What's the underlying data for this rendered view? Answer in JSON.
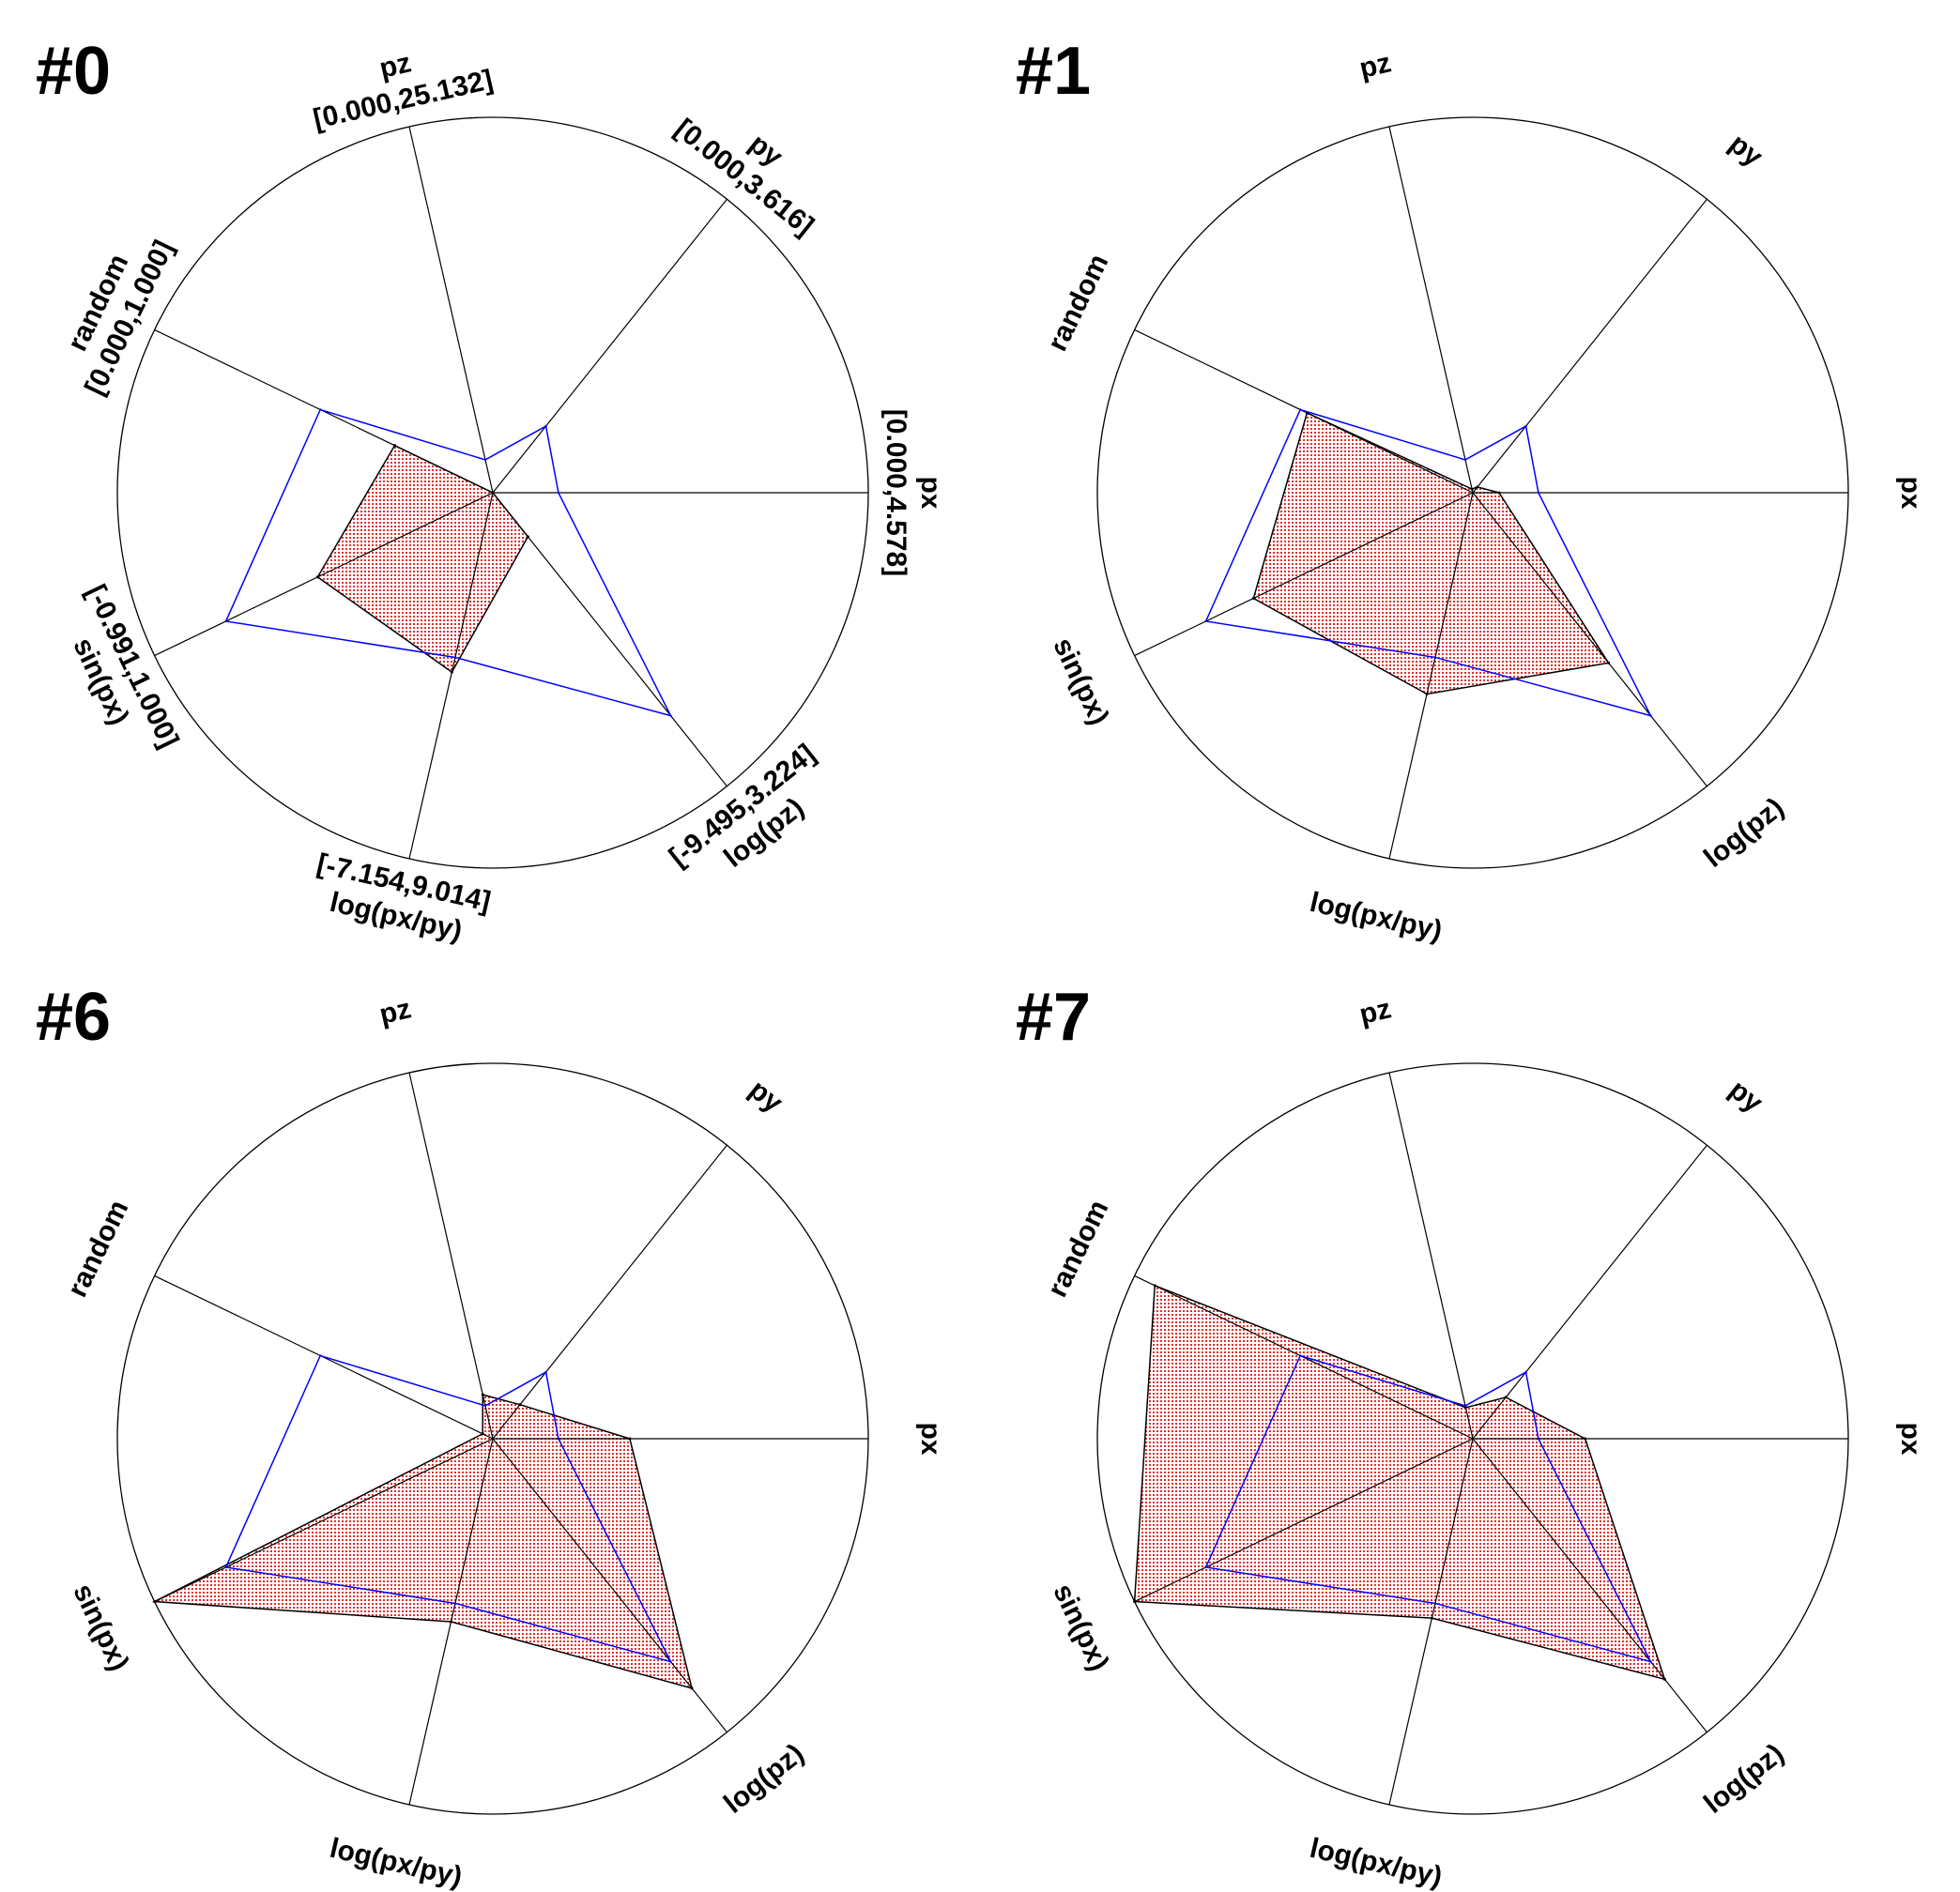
{
  "chart_data": [
    {
      "type": "radar",
      "title": "#0",
      "show_ranges": true,
      "axes": [
        {
          "name": "px",
          "range_label": "[0.000,4.578]",
          "range": [
            0.0,
            4.578
          ]
        },
        {
          "name": "py",
          "range_label": "[0.000,3.616]",
          "range": [
            0.0,
            3.616
          ]
        },
        {
          "name": "pz",
          "range_label": "[0.000,25.132]",
          "range": [
            0.0,
            25.132
          ]
        },
        {
          "name": "random",
          "range_label": "[0.000,1.000]",
          "range": [
            0.0,
            1.0
          ]
        },
        {
          "name": "sin(px)",
          "range_label": "[-0.991,1.000]",
          "range": [
            -0.991,
            1.0
          ]
        },
        {
          "name": "log(px/py)",
          "range_label": "[-7.154,9.014]",
          "range": [
            -7.154,
            9.014
          ]
        },
        {
          "name": "log(pz)",
          "range_label": "[-9.495,3.224]",
          "range": [
            -9.495,
            3.224
          ]
        }
      ],
      "reference_values": [
        0.8,
        0.82,
        2.26,
        0.51,
        0.58,
        0.12,
        0.17
      ],
      "entry_values": [
        0.0,
        0.0,
        0.0,
        0.29,
        0.04,
        0.77,
        -7.59
      ]
    },
    {
      "type": "radar",
      "title": "#1",
      "show_ranges": false,
      "axes": [
        {
          "name": "px",
          "range": [
            0.0,
            4.578
          ]
        },
        {
          "name": "py",
          "range": [
            0.0,
            3.616
          ]
        },
        {
          "name": "pz",
          "range": [
            0.0,
            25.132
          ]
        },
        {
          "name": "random",
          "range": [
            0.0,
            1.0
          ]
        },
        {
          "name": "sin(px)",
          "range": [
            -0.991,
            1.0
          ]
        },
        {
          "name": "log(px/py)",
          "range": [
            -7.154,
            9.014
          ]
        },
        {
          "name": "log(pz)",
          "range": [
            -9.495,
            3.224
          ]
        }
      ],
      "reference_values": [
        0.8,
        0.82,
        2.26,
        0.51,
        0.58,
        0.12,
        0.17
      ],
      "entry_values": [
        0.32,
        0.07,
        0.25,
        0.49,
        0.3,
        1.74,
        -2.12
      ]
    },
    {
      "type": "radar",
      "title": "#6",
      "show_ranges": false,
      "axes": [
        {
          "name": "px",
          "range": [
            0.0,
            4.578
          ]
        },
        {
          "name": "py",
          "range": [
            0.0,
            3.616
          ]
        },
        {
          "name": "pz",
          "range": [
            0.0,
            25.132
          ]
        },
        {
          "name": "random",
          "range": [
            0.0,
            1.0
          ]
        },
        {
          "name": "sin(px)",
          "range": [
            -0.991,
            1.0
          ]
        },
        {
          "name": "log(px/py)",
          "range": [
            -7.154,
            9.014
          ]
        },
        {
          "name": "log(pz)",
          "range": [
            -9.495,
            3.224
          ]
        }
      ],
      "reference_values": [
        0.8,
        0.82,
        2.26,
        0.51,
        0.58,
        0.12,
        0.17
      ],
      "entry_values": [
        1.67,
        0.42,
        3.02,
        0.03,
        1.0,
        0.93,
        1.32
      ]
    },
    {
      "type": "radar",
      "title": "#7",
      "show_ranges": false,
      "axes": [
        {
          "name": "px",
          "range": [
            0.0,
            4.578
          ]
        },
        {
          "name": "py",
          "range": [
            0.0,
            3.616
          ]
        },
        {
          "name": "pz",
          "range": [
            0.0,
            25.132
          ]
        },
        {
          "name": "random",
          "range": [
            0.0,
            1.0
          ]
        },
        {
          "name": "sin(px)",
          "range": [
            -0.991,
            1.0
          ]
        },
        {
          "name": "log(px/py)",
          "range": [
            -7.154,
            9.014
          ]
        },
        {
          "name": "log(pz)",
          "range": [
            -9.495,
            3.224
          ]
        }
      ],
      "reference_values": [
        0.8,
        0.82,
        2.26,
        0.51,
        0.58,
        0.12,
        0.17
      ],
      "entry_values": [
        1.37,
        0.51,
        2.14,
        0.94,
        1.0,
        0.77,
        0.93
      ]
    }
  ],
  "colors": {
    "reference_line": "#0000ff",
    "entry_fill": "#ff0000",
    "axis": "#000000"
  }
}
